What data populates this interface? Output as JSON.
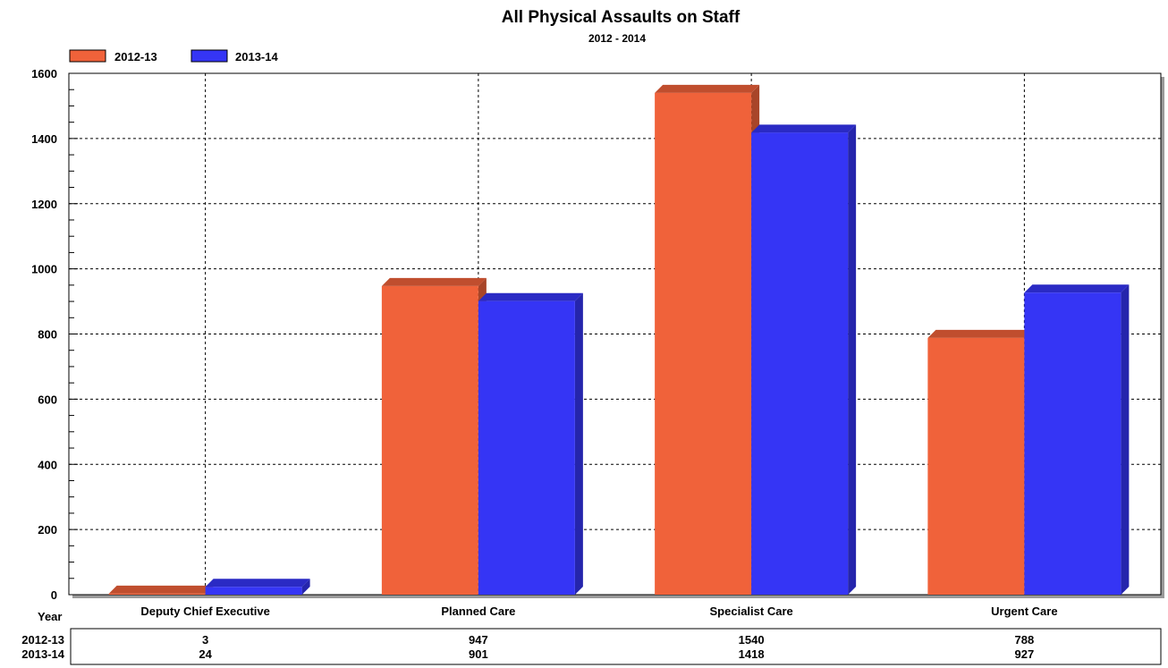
{
  "chart_data": {
    "type": "bar",
    "title": "All Physical Assaults on Staff",
    "subtitle": "2012 - 2014",
    "categories": [
      "Deputy Chief Executive",
      "Planned Care",
      "Specialist Care",
      "Urgent Care"
    ],
    "series": [
      {
        "name": "2012-13",
        "values": [
          3,
          947,
          1540,
          788
        ],
        "color": "#f0623a"
      },
      {
        "name": "2013-14",
        "values": [
          24,
          901,
          1418,
          927
        ],
        "color": "#3535f5"
      }
    ],
    "ylim": [
      0,
      1600
    ],
    "yticks": [
      0,
      200,
      400,
      600,
      800,
      1000,
      1200,
      1400,
      1600
    ],
    "grid": true,
    "legend_position": "top-left",
    "data_table": {
      "header": "Year",
      "rows": [
        {
          "label": "2012-13",
          "values": [
            "3",
            "947",
            "1540",
            "788"
          ]
        },
        {
          "label": "2013-14",
          "values": [
            "24",
            "901",
            "1418",
            "927"
          ]
        }
      ]
    }
  }
}
